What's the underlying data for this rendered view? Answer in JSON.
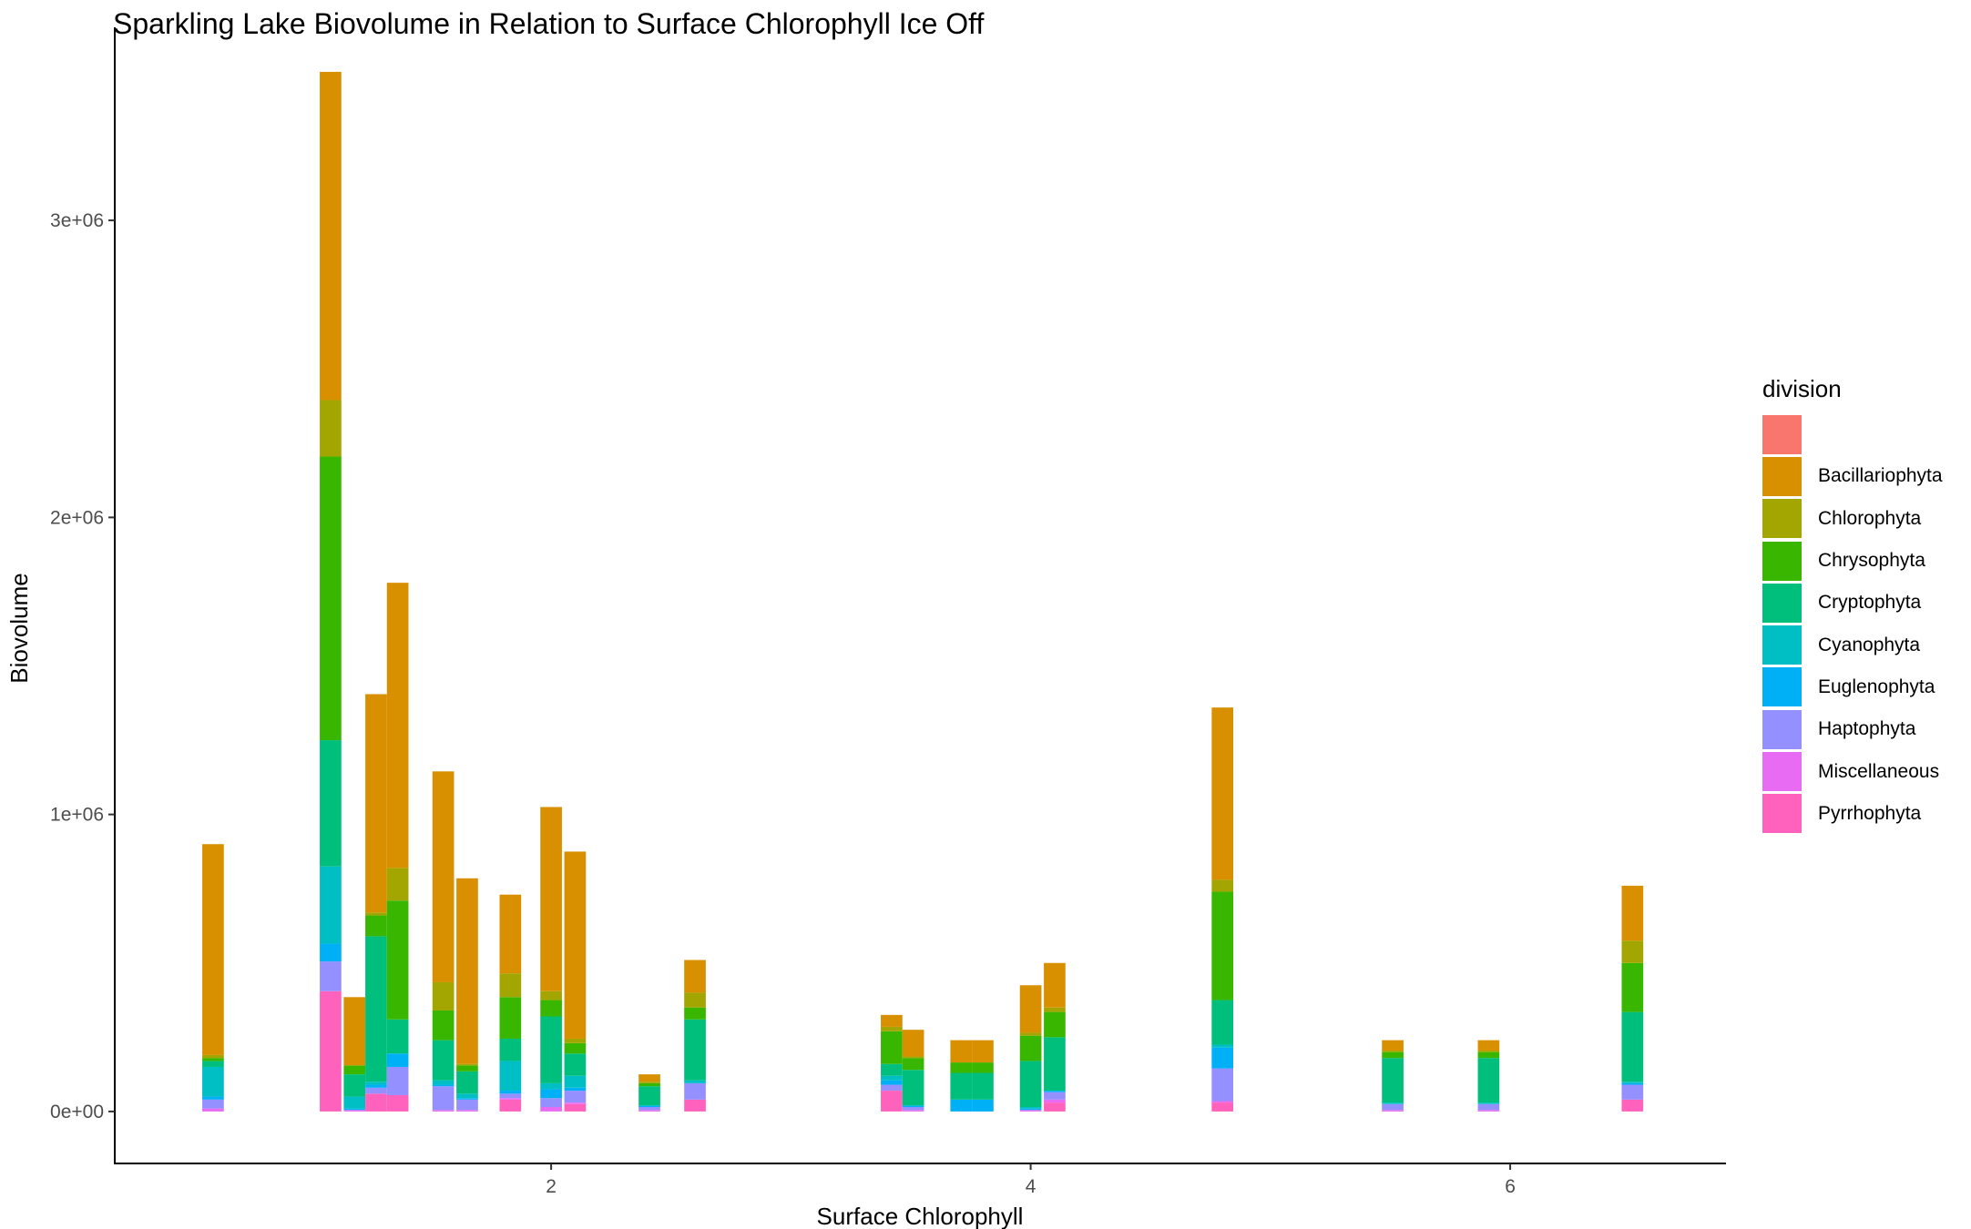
{
  "chart_data": {
    "type": "bar",
    "stacked": true,
    "title": "Sparkling Lake Biovolume in Relation to Surface Chlorophyll Ice Off",
    "xlabel": "Surface Chlorophyll",
    "ylabel": "Biovolume",
    "xlim": [
      0.18,
      6.9
    ],
    "ylim": [
      -175000,
      3650000
    ],
    "x_ticks": [
      2,
      4,
      6
    ],
    "x_tick_labels": [
      "2",
      "4",
      "6"
    ],
    "y_ticks": [
      0,
      1000000,
      2000000,
      3000000
    ],
    "y_tick_labels": [
      "0e+00",
      "1e+06",
      "2e+06",
      "3e+06"
    ],
    "bar_width": 0.09,
    "grid": false,
    "legend_title": "division",
    "legend_position": "right",
    "divisions": [
      "",
      "Bacillariophyta",
      "Chlorophyta",
      "Chrysophyta",
      "Cryptophyta",
      "Cyanophyta",
      "Euglenophyta",
      "Haptophyta",
      "Miscellaneous",
      "Pyrrhophyta"
    ],
    "colors": [
      "#F8766D",
      "#D39200",
      "#93AA00",
      "#00BA38",
      "#00C19F",
      "#00B9E3",
      "#619CFF",
      "#DB72FB",
      "#FF61C3",
      "#FF61C3"
    ],
    "palette": {
      "": "#F8766D",
      "Bacillariophyta": "#D89000",
      "Chlorophyta": "#A3A500",
      "Chrysophyta": "#39B600",
      "Cryptophyta": "#00BF7D",
      "Cyanophyta": "#00BFC4",
      "Euglenophyta": "#00B0F6",
      "Haptophyta": "#9590FF",
      "Miscellaneous": "#E76BF3",
      "Pyrrhophyta": "#FF62BC"
    },
    "bars": [
      {
        "x": 0.59,
        "segments": [
          [
            "Miscellaneous",
            10000
          ],
          [
            "Haptophyta",
            30000
          ],
          [
            "Euglenophyta",
            10000
          ],
          [
            "Cyanophyta",
            100000
          ],
          [
            "Cryptophyta",
            20000
          ],
          [
            "Chrysophyta",
            10000
          ],
          [
            "Chlorophyta",
            10000
          ],
          [
            "Bacillariophyta",
            710000
          ]
        ]
      },
      {
        "x": 1.08,
        "segments": [
          [
            "Pyrrhophyta",
            405000
          ],
          [
            "Haptophyta",
            100000
          ],
          [
            "Euglenophyta",
            60000
          ],
          [
            "Cyanophyta",
            260000
          ],
          [
            "Cryptophyta",
            425000
          ],
          [
            "Chrysophyta",
            955000
          ],
          [
            "Chlorophyta",
            190000
          ],
          [
            "Bacillariophyta",
            1105000
          ]
        ]
      },
      {
        "x": 1.18,
        "segments": [
          [
            "Miscellaneous",
            5000
          ],
          [
            "Euglenophyta",
            5000
          ],
          [
            "Cyanophyta",
            40000
          ],
          [
            "Cryptophyta",
            75000
          ],
          [
            "Chrysophyta",
            30000
          ],
          [
            "Bacillariophyta",
            230000
          ]
        ]
      },
      {
        "x": 1.27,
        "segments": [
          [
            "Pyrrhophyta",
            60000
          ],
          [
            "Haptophyta",
            20000
          ],
          [
            "Euglenophyta",
            10000
          ],
          [
            "Cyanophyta",
            10000
          ],
          [
            "Cryptophyta",
            490000
          ],
          [
            "Chrysophyta",
            70000
          ],
          [
            "Chlorophyta",
            10000
          ],
          [
            "Bacillariophyta",
            735000
          ]
        ]
      },
      {
        "x": 1.36,
        "segments": [
          [
            "Pyrrhophyta",
            55000
          ],
          [
            "Haptophyta",
            95000
          ],
          [
            "Euglenophyta",
            45000
          ],
          [
            "Cryptophyta",
            115000
          ],
          [
            "Chrysophyta",
            400000
          ],
          [
            "Chlorophyta",
            110000
          ],
          [
            "Bacillariophyta",
            960000
          ]
        ]
      },
      {
        "x": 1.55,
        "segments": [
          [
            "Miscellaneous",
            5000
          ],
          [
            "Haptophyta",
            80000
          ],
          [
            "Euglenophyta",
            5000
          ],
          [
            "Cyanophyta",
            15000
          ],
          [
            "Cryptophyta",
            135000
          ],
          [
            "Chrysophyta",
            100000
          ],
          [
            "Chlorophyta",
            95000
          ],
          [
            "Bacillariophyta",
            710000
          ]
        ]
      },
      {
        "x": 1.65,
        "segments": [
          [
            "Miscellaneous",
            5000
          ],
          [
            "Haptophyta",
            35000
          ],
          [
            "Euglenophyta",
            5000
          ],
          [
            "Cyanophyta",
            15000
          ],
          [
            "Cryptophyta",
            75000
          ],
          [
            "Chrysophyta",
            20000
          ],
          [
            "Chlorophyta",
            5000
          ],
          [
            "Bacillariophyta",
            625000
          ]
        ]
      },
      {
        "x": 1.83,
        "segments": [
          [
            "Pyrrhophyta",
            40000
          ],
          [
            "Miscellaneous",
            5000
          ],
          [
            "Haptophyta",
            15000
          ],
          [
            "Euglenophyta",
            10000
          ],
          [
            "Cyanophyta",
            100000
          ],
          [
            "Cryptophyta",
            75000
          ],
          [
            "Chrysophyta",
            140000
          ],
          [
            "Chlorophyta",
            80000
          ],
          [
            "Bacillariophyta",
            265000
          ]
        ]
      },
      {
        "x": 2.0,
        "segments": [
          [
            "Miscellaneous",
            15000
          ],
          [
            "Haptophyta",
            30000
          ],
          [
            "Euglenophyta",
            30000
          ],
          [
            "Cyanophyta",
            20000
          ],
          [
            "Cryptophyta",
            225000
          ],
          [
            "Chrysophyta",
            55000
          ],
          [
            "Chlorophyta",
            30000
          ],
          [
            "Bacillariophyta",
            620000
          ]
        ]
      },
      {
        "x": 2.1,
        "segments": [
          [
            "Pyrrhophyta",
            25000
          ],
          [
            "Miscellaneous",
            5000
          ],
          [
            "Haptophyta",
            40000
          ],
          [
            "Euglenophyta",
            10000
          ],
          [
            "Cyanophyta",
            40000
          ],
          [
            "Cryptophyta",
            75000
          ],
          [
            "Chrysophyta",
            35000
          ],
          [
            "Chlorophyta",
            15000
          ],
          [
            "Bacillariophyta",
            630000
          ]
        ]
      },
      {
        "x": 2.41,
        "segments": [
          [
            "Miscellaneous",
            5000
          ],
          [
            "Haptophyta",
            10000
          ],
          [
            "Euglenophyta",
            5000
          ],
          [
            "Cryptophyta",
            65000
          ],
          [
            "Chrysophyta",
            10000
          ],
          [
            "Chlorophyta",
            5000
          ],
          [
            "Bacillariophyta",
            25000
          ]
        ]
      },
      {
        "x": 2.6,
        "segments": [
          [
            "Pyrrhophyta",
            40000
          ],
          [
            "Haptophyta",
            55000
          ],
          [
            "Cyanophyta",
            10000
          ],
          [
            "Cryptophyta",
            205000
          ],
          [
            "Chrysophyta",
            40000
          ],
          [
            "Chlorophyta",
            50000
          ],
          [
            "Bacillariophyta",
            110000
          ]
        ]
      },
      {
        "x": 3.42,
        "segments": [
          [
            "Pyrrhophyta",
            70000
          ],
          [
            "Haptophyta",
            20000
          ],
          [
            "Euglenophyta",
            15000
          ],
          [
            "Cyanophyta",
            15000
          ],
          [
            "Cryptophyta",
            40000
          ],
          [
            "Chrysophyta",
            110000
          ],
          [
            "Chlorophyta",
            15000
          ],
          [
            "Bacillariophyta",
            40000
          ]
        ]
      },
      {
        "x": 3.51,
        "segments": [
          [
            "Miscellaneous",
            5000
          ],
          [
            "Haptophyta",
            10000
          ],
          [
            "Euglenophyta",
            5000
          ],
          [
            "Cryptophyta",
            120000
          ],
          [
            "Chrysophyta",
            40000
          ],
          [
            "Chlorophyta",
            5000
          ],
          [
            "Bacillariophyta",
            90000
          ]
        ]
      },
      {
        "x": 3.71,
        "segments": [
          [
            "Euglenophyta",
            40000
          ],
          [
            "Cryptophyta",
            90000
          ],
          [
            "Chrysophyta",
            35000
          ],
          [
            "Bacillariophyta",
            75000
          ]
        ]
      },
      {
        "x": 3.8,
        "segments": [
          [
            "Euglenophyta",
            40000
          ],
          [
            "Cryptophyta",
            90000
          ],
          [
            "Chrysophyta",
            35000
          ],
          [
            "Bacillariophyta",
            75000
          ]
        ]
      },
      {
        "x": 4.0,
        "segments": [
          [
            "Miscellaneous",
            5000
          ],
          [
            "Euglenophyta",
            5000
          ],
          [
            "Cyanophyta",
            5000
          ],
          [
            "Cryptophyta",
            155000
          ],
          [
            "Chrysophyta",
            85000
          ],
          [
            "Chlorophyta",
            10000
          ],
          [
            "Bacillariophyta",
            160000
          ]
        ]
      },
      {
        "x": 4.1,
        "segments": [
          [
            "Pyrrhophyta",
            30000
          ],
          [
            "Miscellaneous",
            10000
          ],
          [
            "Haptophyta",
            25000
          ],
          [
            "Euglenophyta",
            5000
          ],
          [
            "Cryptophyta",
            180000
          ],
          [
            "Chrysophyta",
            85000
          ],
          [
            "Chlorophyta",
            15000
          ],
          [
            "Bacillariophyta",
            150000
          ]
        ]
      },
      {
        "x": 4.8,
        "segments": [
          [
            "Pyrrhophyta",
            30000
          ],
          [
            "Miscellaneous",
            5000
          ],
          [
            "Haptophyta",
            110000
          ],
          [
            "Euglenophyta",
            70000
          ],
          [
            "Cyanophyta",
            10000
          ],
          [
            "Cryptophyta",
            150000
          ],
          [
            "Chrysophyta",
            365000
          ],
          [
            "Chlorophyta",
            40000
          ],
          [
            "Bacillariophyta",
            580000
          ]
        ]
      },
      {
        "x": 5.51,
        "segments": [
          [
            "Miscellaneous",
            5000
          ],
          [
            "Haptophyta",
            20000
          ],
          [
            "Cyanophyta",
            5000
          ],
          [
            "Cryptophyta",
            150000
          ],
          [
            "Chrysophyta",
            20000
          ],
          [
            "Chlorophyta",
            5000
          ],
          [
            "Bacillariophyta",
            35000
          ]
        ]
      },
      {
        "x": 5.91,
        "segments": [
          [
            "Miscellaneous",
            5000
          ],
          [
            "Haptophyta",
            20000
          ],
          [
            "Cyanophyta",
            5000
          ],
          [
            "Cryptophyta",
            150000
          ],
          [
            "Chrysophyta",
            20000
          ],
          [
            "Chlorophyta",
            5000
          ],
          [
            "Bacillariophyta",
            35000
          ]
        ]
      },
      {
        "x": 6.51,
        "segments": [
          [
            "Pyrrhophyta",
            40000
          ],
          [
            "Haptophyta",
            50000
          ],
          [
            "Euglenophyta",
            5000
          ],
          [
            "Cyanophyta",
            5000
          ],
          [
            "Cryptophyta",
            235000
          ],
          [
            "Chrysophyta",
            165000
          ],
          [
            "Chlorophyta",
            75000
          ],
          [
            "Bacillariophyta",
            185000
          ]
        ]
      }
    ]
  }
}
